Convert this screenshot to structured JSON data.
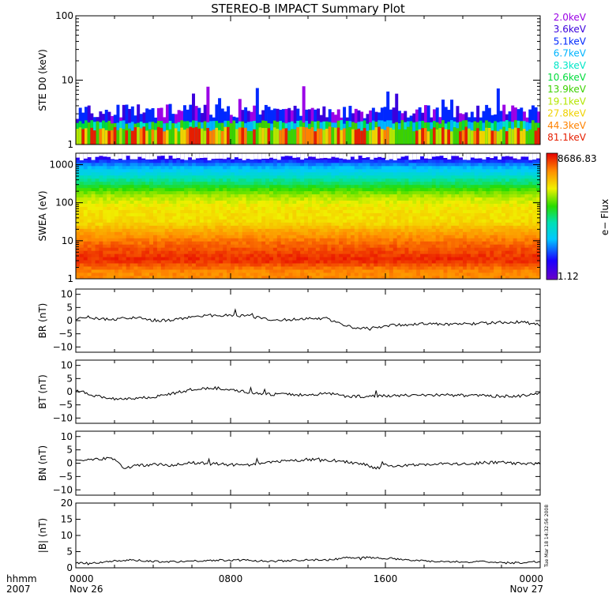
{
  "title": "STEREO-B IMPACT Summary Plot",
  "x_axis": {
    "row_label_1": "hhmm",
    "row_label_2": "2007",
    "ticks": [
      {
        "hour": 0,
        "time": "0000",
        "date": "Nov 26"
      },
      {
        "hour": 8,
        "time": "0800",
        "date": ""
      },
      {
        "hour": 16,
        "time": "1600",
        "date": ""
      },
      {
        "hour": 24,
        "time": "0000",
        "date": "Nov 27"
      }
    ],
    "range_hours": [
      0,
      24
    ]
  },
  "timestamp": "Tue Mar 18 14:32:56 2008",
  "colorbar": {
    "label": "e− Flux",
    "max": "8686.83",
    "min": "1.12"
  },
  "colors": {
    "line": "#000000",
    "frame": "#000000",
    "background": "#ffffff"
  },
  "chart_data": [
    {
      "type": "bar",
      "name": "ste",
      "ylabel": "STE D0 (keV)",
      "yscale": "log",
      "ylim": [
        1,
        100
      ],
      "ytick_labels": [
        "1",
        "10",
        "100"
      ],
      "legend_position": "right",
      "legend": [
        {
          "label": "2.0keV",
          "color": "#9b00e6"
        },
        {
          "label": "3.6keV",
          "color": "#3a00dd"
        },
        {
          "label": "5.1keV",
          "color": "#0028ff"
        },
        {
          "label": "6.7keV",
          "color": "#00b4ff"
        },
        {
          "label": "8.3keV",
          "color": "#00e6c8"
        },
        {
          "label": "10.6keV",
          "color": "#00dc3c"
        },
        {
          "label": "13.9keV",
          "color": "#3cd200"
        },
        {
          "label": "19.1keV",
          "color": "#b4e600"
        },
        {
          "label": "27.8keV",
          "color": "#f0d200"
        },
        {
          "label": "44.3keV",
          "color": "#ff8200"
        },
        {
          "label": "81.1keV",
          "color": "#e61e00"
        }
      ],
      "x_hours": [
        0,
        2,
        4,
        6,
        8,
        10,
        12,
        14,
        16,
        18,
        20,
        22,
        24
      ],
      "top_energy_keV": [
        3.2,
        3.4,
        3.3,
        3.4,
        3.3,
        3.4,
        3.3,
        3.2,
        3.3,
        3.4,
        3.3,
        3.3,
        3.3
      ]
    },
    {
      "type": "heatmap",
      "name": "swea",
      "ylabel": "SWEA (eV)",
      "yscale": "log",
      "ylim": [
        1,
        2000
      ],
      "ytick_labels": [
        "1",
        "10",
        "100",
        "1000"
      ],
      "energy_eV": [
        1.5,
        3,
        6,
        12,
        30,
        80,
        150,
        300,
        600,
        1100,
        1500
      ],
      "flux_level_0_1": [
        0.86,
        0.96,
        0.92,
        0.86,
        0.75,
        0.73,
        0.67,
        0.52,
        0.37,
        0.24,
        0.12
      ],
      "colorscale": "rainbow"
    },
    {
      "type": "line",
      "name": "br",
      "ylabel": "BR (nT)",
      "ylim": [
        -12,
        12
      ],
      "ytick_labels": [
        "10",
        "5",
        "0",
        "−5",
        "−10"
      ],
      "x_hours": [
        0,
        0.5,
        1,
        2,
        3,
        4,
        5,
        6,
        7,
        8,
        9,
        10,
        11,
        12,
        13,
        14,
        14.5,
        15,
        16,
        17,
        18,
        19,
        20,
        21,
        22,
        23,
        24
      ],
      "y": [
        0.5,
        1.5,
        0.8,
        0.5,
        1.2,
        0.2,
        0,
        1.7,
        2.0,
        2.1,
        1.8,
        0.2,
        0.3,
        0.9,
        0.8,
        -2.0,
        -3.0,
        -2.9,
        -2.0,
        -1.5,
        -1.2,
        -1.4,
        -1.3,
        -1.0,
        -0.7,
        -0.5,
        -1.6
      ]
    },
    {
      "type": "line",
      "name": "bt",
      "ylabel": "BT (nT)",
      "ylim": [
        -12,
        12
      ],
      "ytick_labels": [
        "10",
        "5",
        "0",
        "−5",
        "−10"
      ],
      "x_hours": [
        0,
        1,
        2,
        3,
        4,
        5,
        6,
        7,
        8,
        9,
        10,
        11,
        12,
        13,
        14,
        15,
        16,
        17,
        18,
        19,
        20,
        21,
        22,
        23,
        24
      ],
      "y": [
        0.5,
        -1.5,
        -2.7,
        -2.5,
        -2.0,
        -0.7,
        0.8,
        1.4,
        1.0,
        -0.5,
        -1.0,
        -1.0,
        -1.3,
        -0.5,
        -1.7,
        -1.8,
        -1.5,
        -1.4,
        -1.3,
        -1.2,
        -1.4,
        -1.5,
        -1.7,
        -1.6,
        -0.8
      ]
    },
    {
      "type": "line",
      "name": "bn",
      "ylabel": "BN (nT)",
      "ylim": [
        -12,
        12
      ],
      "ytick_labels": [
        "10",
        "5",
        "0",
        "−5",
        "−10"
      ],
      "x_hours": [
        0,
        1,
        2,
        2.5,
        3,
        4,
        5,
        6,
        7,
        8,
        9,
        10,
        11,
        12,
        13,
        14,
        15,
        15.5,
        16,
        17,
        18,
        19,
        20,
        21,
        22,
        23,
        24
      ],
      "y": [
        0.8,
        1.5,
        1.8,
        -2.0,
        -1.0,
        -0.5,
        -0.7,
        0.1,
        -0.2,
        -0.6,
        -0.8,
        0.3,
        0.8,
        1.4,
        0.9,
        0.5,
        -0.4,
        -2.0,
        -0.8,
        -1.0,
        -0.4,
        -0.2,
        -0.4,
        0.1,
        0.4,
        -0.3,
        -0.2
      ]
    },
    {
      "type": "line",
      "name": "bmag",
      "ylabel": "|B| (nT)",
      "ylim": [
        0,
        20
      ],
      "ytick_labels": [
        "0",
        "5",
        "10",
        "15",
        "20"
      ],
      "x_hours": [
        0,
        1,
        2,
        3,
        4,
        5,
        6,
        7,
        8,
        9,
        10,
        11,
        12,
        13,
        14,
        15,
        16,
        17,
        18,
        19,
        20,
        21,
        22,
        23,
        24
      ],
      "y": [
        1.4,
        1.6,
        2.1,
        2.4,
        2.0,
        1.9,
        2.1,
        2.3,
        2.4,
        2.3,
        2.0,
        2.2,
        2.5,
        2.3,
        3.2,
        3.2,
        3.0,
        2.6,
        2.1,
        2.0,
        1.8,
        1.9,
        1.5,
        1.6,
        2.0
      ]
    }
  ]
}
